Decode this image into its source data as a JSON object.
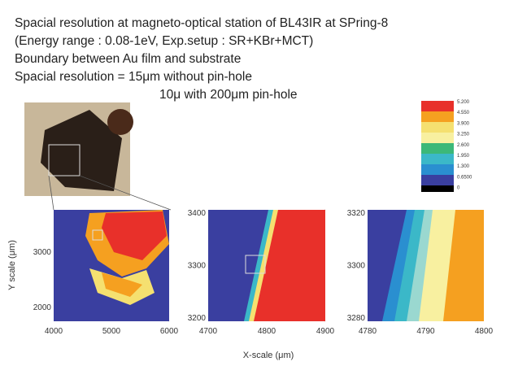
{
  "header": {
    "lines": [
      "Spacial resolution at magneto-optical station of BL43IR at SPring-8",
      "(Energy range : 0.08-1eV, Exp.setup : SR+KBr+MCT)",
      "Boundary between Au film and substrate",
      "Spacial resolution = 15μm without pin-hole",
      "10μ with 200μm pin-hole"
    ]
  },
  "colorbar": {
    "labels": [
      "5.200",
      "4.550",
      "3.900",
      "3.250",
      "2.600",
      "1.950",
      "1.300",
      "0.6500",
      "0"
    ]
  },
  "axes": {
    "y_label": "Y scale (μm)",
    "x_label": "X-scale (μm)"
  },
  "panels": [
    {
      "yticks": [
        "3000",
        "2000"
      ],
      "xticks": [
        "4000",
        "5000",
        "6000"
      ]
    },
    {
      "yticks": [
        "3400",
        "3300",
        "3200"
      ],
      "xticks": [
        "4700",
        "4800",
        "4900"
      ]
    },
    {
      "yticks": [
        "3320",
        "3300",
        "3280"
      ],
      "xticks": [
        "4780",
        "4790",
        "4800"
      ]
    }
  ]
}
